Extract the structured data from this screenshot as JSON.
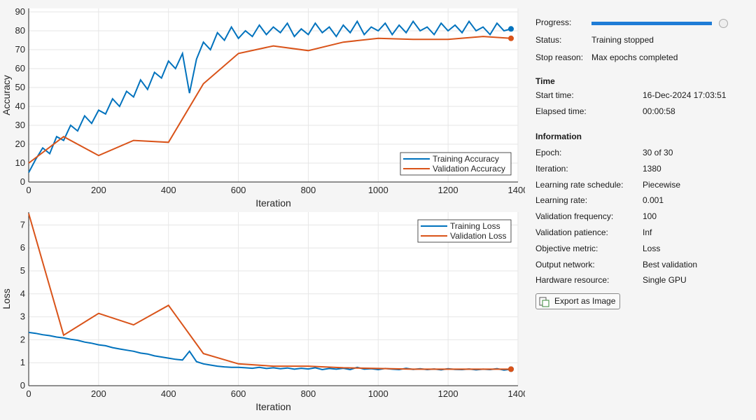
{
  "chart_data": [
    {
      "type": "line",
      "x_label": "Iteration",
      "y_label": "Accuracy",
      "xlim": [
        0,
        1400
      ],
      "xticks": [
        0,
        200,
        400,
        600,
        800,
        1000,
        1200,
        1400
      ],
      "ylim": [
        0,
        90
      ],
      "yticks": [
        0,
        10,
        20,
        30,
        40,
        50,
        60,
        70,
        80,
        90
      ],
      "grid": true,
      "legend": "southeast",
      "series": [
        {
          "name": "Training Accuracy",
          "color": "#0072bd",
          "x": [
            0,
            20,
            40,
            60,
            80,
            100,
            120,
            140,
            160,
            180,
            200,
            220,
            240,
            260,
            280,
            300,
            320,
            340,
            360,
            380,
            400,
            420,
            440,
            460,
            480,
            500,
            520,
            540,
            560,
            580,
            600,
            620,
            640,
            660,
            680,
            700,
            720,
            740,
            760,
            780,
            800,
            820,
            840,
            860,
            880,
            900,
            920,
            940,
            960,
            980,
            1000,
            1020,
            1040,
            1060,
            1080,
            1100,
            1120,
            1140,
            1160,
            1180,
            1200,
            1220,
            1240,
            1260,
            1280,
            1300,
            1320,
            1340,
            1360,
            1380
          ],
          "values": [
            5,
            12,
            18,
            15,
            24,
            22,
            30,
            27,
            35,
            31,
            38,
            36,
            44,
            40,
            48,
            45,
            54,
            49,
            58,
            55,
            64,
            60,
            68,
            47,
            65,
            74,
            70,
            79,
            75,
            82,
            76,
            80,
            77,
            83,
            78,
            82,
            79,
            84,
            77,
            81,
            78,
            84,
            79,
            82,
            77,
            83,
            79,
            85,
            78,
            82,
            80,
            84,
            78,
            83,
            79,
            85,
            80,
            82,
            78,
            84,
            80,
            83,
            79,
            85,
            80,
            82,
            78,
            84,
            80,
            81
          ]
        },
        {
          "name": "Validation Accuracy",
          "color": "#d95319",
          "x": [
            0,
            100,
            200,
            300,
            400,
            500,
            600,
            700,
            800,
            900,
            1000,
            1100,
            1200,
            1300,
            1380
          ],
          "values": [
            10,
            24,
            14,
            22,
            21,
            52,
            68,
            72,
            69.5,
            74,
            76,
            75.5,
            75.5,
            77,
            76
          ]
        }
      ]
    },
    {
      "type": "line",
      "x_label": "Iteration",
      "y_label": "Loss",
      "xlim": [
        0,
        1400
      ],
      "xticks": [
        0,
        200,
        400,
        600,
        800,
        1000,
        1200,
        1400
      ],
      "ylim": [
        0,
        7.5
      ],
      "yticks": [
        0,
        1,
        2,
        3,
        4,
        5,
        6,
        7
      ],
      "grid": true,
      "legend": "northeast",
      "series": [
        {
          "name": "Training Loss",
          "color": "#0072bd",
          "x": [
            0,
            20,
            40,
            60,
            80,
            100,
            120,
            140,
            160,
            180,
            200,
            220,
            240,
            260,
            280,
            300,
            320,
            340,
            360,
            380,
            400,
            420,
            440,
            460,
            480,
            500,
            520,
            540,
            560,
            580,
            600,
            620,
            640,
            660,
            680,
            700,
            720,
            740,
            760,
            780,
            800,
            820,
            840,
            860,
            880,
            900,
            920,
            940,
            960,
            980,
            1000,
            1020,
            1040,
            1060,
            1080,
            1100,
            1120,
            1140,
            1160,
            1180,
            1200,
            1220,
            1240,
            1260,
            1280,
            1300,
            1320,
            1340,
            1360,
            1380
          ],
          "values": [
            2.32,
            2.28,
            2.22,
            2.18,
            2.12,
            2.08,
            2.02,
            1.98,
            1.9,
            1.85,
            1.78,
            1.74,
            1.66,
            1.6,
            1.55,
            1.5,
            1.42,
            1.38,
            1.3,
            1.25,
            1.2,
            1.15,
            1.12,
            1.5,
            1.05,
            0.95,
            0.9,
            0.85,
            0.82,
            0.8,
            0.8,
            0.78,
            0.76,
            0.8,
            0.75,
            0.78,
            0.74,
            0.77,
            0.72,
            0.76,
            0.73,
            0.78,
            0.7,
            0.75,
            0.72,
            0.76,
            0.7,
            0.8,
            0.72,
            0.74,
            0.7,
            0.75,
            0.72,
            0.7,
            0.76,
            0.71,
            0.74,
            0.7,
            0.73,
            0.69,
            0.74,
            0.71,
            0.7,
            0.73,
            0.69,
            0.72,
            0.7,
            0.74,
            0.68,
            0.72
          ]
        },
        {
          "name": "Validation Loss",
          "color": "#d95319",
          "x": [
            0,
            100,
            200,
            300,
            400,
            500,
            600,
            700,
            800,
            900,
            1000,
            1100,
            1200,
            1300,
            1380
          ],
          "values": [
            7.5,
            2.2,
            3.15,
            2.65,
            3.5,
            1.4,
            0.95,
            0.85,
            0.85,
            0.78,
            0.75,
            0.72,
            0.72,
            0.72,
            0.72
          ]
        }
      ]
    }
  ],
  "panel": {
    "progress_label": "Progress:",
    "status": [
      [
        "Status:",
        "Training stopped"
      ],
      [
        "Stop reason:",
        "Max epochs completed"
      ]
    ],
    "time": {
      "heading": "Time",
      "rows": [
        [
          "Start time:",
          "16-Dec-2024 17:03:51"
        ],
        [
          "Elapsed time:",
          "00:00:58"
        ]
      ]
    },
    "information": {
      "heading": "Information",
      "rows": [
        [
          "Epoch:",
          "30 of 30"
        ],
        [
          "Iteration:",
          "1380"
        ],
        [
          "Learning rate schedule:",
          "Piecewise"
        ],
        [
          "Learning rate:",
          "0.001"
        ],
        [
          "Validation frequency:",
          "100"
        ],
        [
          "Validation patience:",
          "Inf"
        ],
        [
          "Objective metric:",
          "Loss"
        ],
        [
          "Output network:",
          "Best validation"
        ],
        [
          "Hardware resource:",
          "Single GPU"
        ]
      ]
    },
    "export_button": "Export as Image"
  }
}
